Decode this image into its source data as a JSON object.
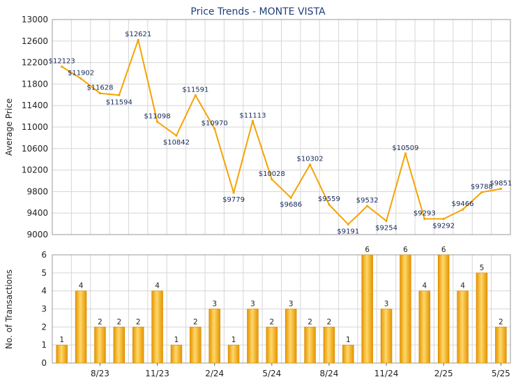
{
  "chart_data": [
    {
      "type": "line",
      "title": "Price Trends - MONTE VISTA",
      "ylabel": "Average Price",
      "ylim": [
        9000,
        13000
      ],
      "yticks": [
        9000,
        9400,
        9800,
        10200,
        10600,
        11000,
        11400,
        11800,
        12200,
        12600,
        13000
      ],
      "series": [
        {
          "values": [
            12123,
            11902,
            11628,
            11594,
            12621,
            11098,
            10842,
            11591,
            10970,
            9779,
            11113,
            10028,
            9686,
            10302,
            9559,
            9191,
            9532,
            9254,
            10509,
            9293,
            9292,
            9466,
            9788,
            9851
          ],
          "labels": [
            "$12123",
            "$11902",
            "$11628",
            "$11594",
            "$12621",
            "$11098",
            "$10842",
            "$11591",
            "$10970",
            "$9779",
            "$11113",
            "$10028",
            "$9686",
            "$10302",
            "$9559",
            "$9191",
            "$9532",
            "$9254",
            "$10509",
            "$9293",
            "$9292",
            "$9466",
            "$9788",
            "$9851"
          ],
          "color": "#f5a300"
        }
      ],
      "grid": true
    },
    {
      "type": "bar",
      "ylabel": "No. of Transactions",
      "ylim": [
        0,
        6
      ],
      "yticks": [
        0,
        1,
        2,
        3,
        4,
        5,
        6
      ],
      "values": [
        1,
        4,
        2,
        2,
        2,
        4,
        1,
        2,
        3,
        1,
        3,
        2,
        3,
        2,
        2,
        1,
        6,
        3,
        6,
        4,
        6,
        4,
        5,
        2
      ],
      "xticks": [
        {
          "index": 2,
          "label": "8/23"
        },
        {
          "index": 5,
          "label": "11/23"
        },
        {
          "index": 8,
          "label": "2/24"
        },
        {
          "index": 11,
          "label": "5/24"
        },
        {
          "index": 14,
          "label": "8/24"
        },
        {
          "index": 17,
          "label": "11/24"
        },
        {
          "index": 20,
          "label": "2/25"
        },
        {
          "index": 23,
          "label": "5/25"
        }
      ],
      "color": "#f5a300",
      "grid": true
    }
  ],
  "colors": {
    "line": "#f5a300",
    "bar_light": "#ffd86a",
    "bar_dark": "#e59400",
    "title": "#1f3f78",
    "grid": "#d6d6d6"
  }
}
